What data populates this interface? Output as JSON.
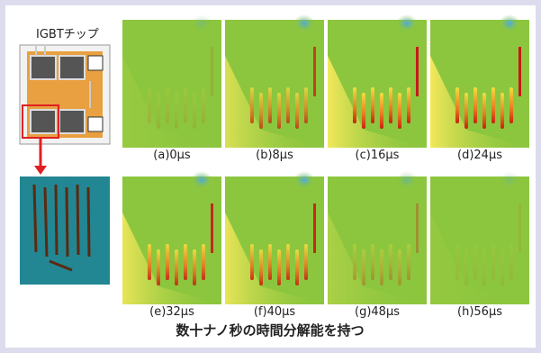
{
  "chip_label": "IGBTチップ",
  "panels": [
    {
      "label": "(a)0μs"
    },
    {
      "label": "(b)8μs"
    },
    {
      "label": "(c)16μs"
    },
    {
      "label": "(d)24μs"
    },
    {
      "label": "(e)32μs"
    },
    {
      "label": "(f)40μs"
    },
    {
      "label": "(g)48μs"
    },
    {
      "label": "(h)56μs"
    }
  ],
  "caption": "数十ナノ秒の時間分解能を持つ"
}
